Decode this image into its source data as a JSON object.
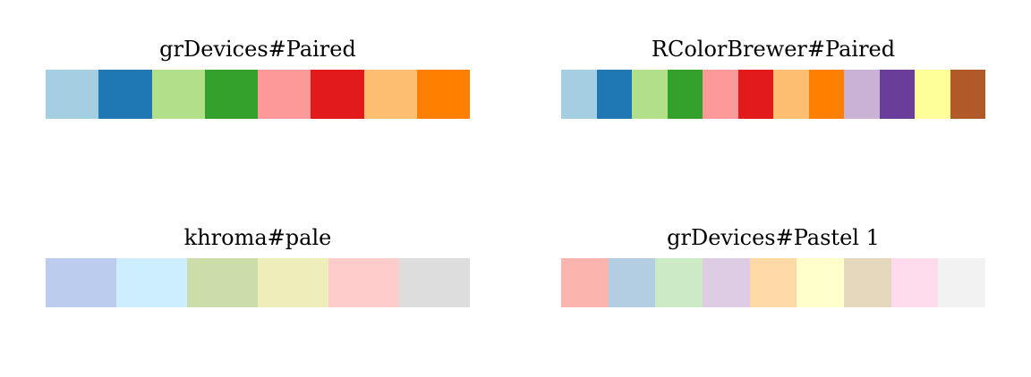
{
  "palettes": [
    {
      "title": "grDevices#Paired",
      "colors": [
        "#A6CEE3",
        "#1F78B4",
        "#B2DF8A",
        "#33A02C",
        "#FB9A99",
        "#E31A1C",
        "#FDBF6F",
        "#FF7F00"
      ]
    },
    {
      "title": "RColorBrewer#Paired",
      "colors": [
        "#A6CEE3",
        "#1F78B4",
        "#B2DF8A",
        "#33A02C",
        "#FB9A99",
        "#E31A1C",
        "#FDBF6F",
        "#FF7F00",
        "#CAB2D6",
        "#6A3D9A",
        "#FFFF99",
        "#B15928"
      ]
    },
    {
      "title": "khroma#pale",
      "colors": [
        "#BBCCEE",
        "#CCEEFF",
        "#CCDDAA",
        "#EEEEBB",
        "#FFCCCC",
        "#DDDDDD"
      ]
    },
    {
      "title": "grDevices#Pastel 1",
      "colors": [
        "#FBB4AE",
        "#B3CDE3",
        "#CCEBC5",
        "#DECBE4",
        "#FED9A6",
        "#FFFFCC",
        "#E5D8BD",
        "#FDDAEC",
        "#F2F2F2"
      ]
    }
  ]
}
